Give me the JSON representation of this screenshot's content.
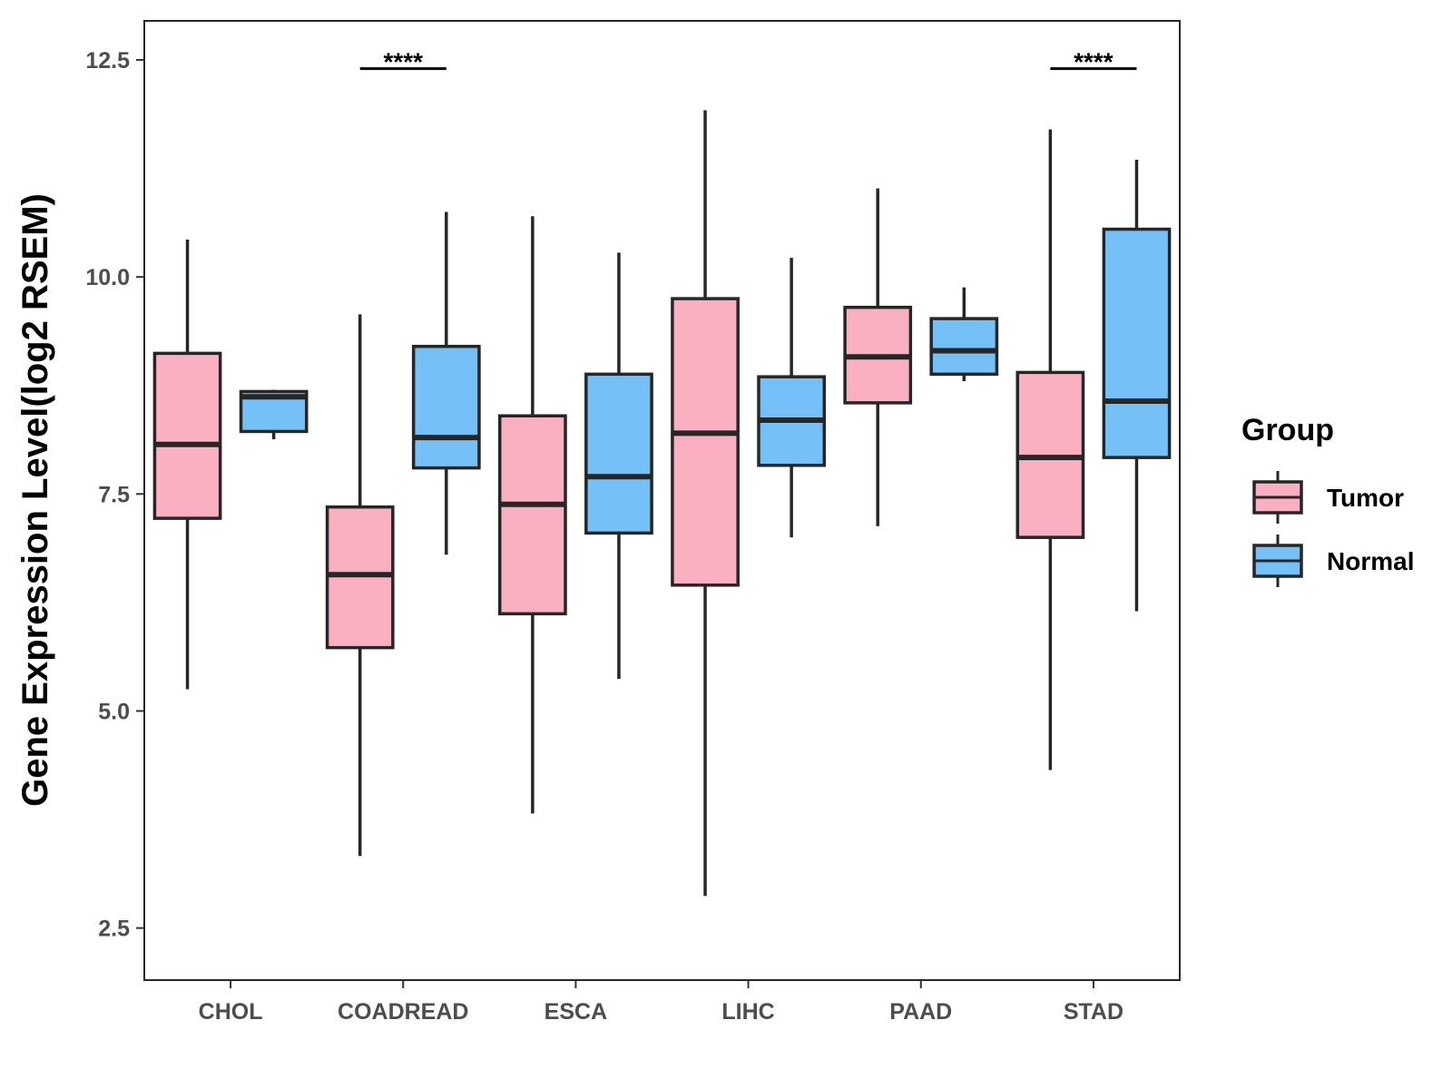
{
  "chart_data": {
    "type": "boxplot",
    "title": "",
    "xlabel": "",
    "ylabel": "Gene Expression Level(log2 RSEM)",
    "ylim": [
      1.9,
      12.95
    ],
    "yticks": [
      "2.5",
      "5.0",
      "7.5",
      "10.0",
      "12.5"
    ],
    "categories": [
      "CHOL",
      "COADREAD",
      "ESCA",
      "LIHC",
      "PAAD",
      "STAD"
    ],
    "legend": {
      "title": "Group",
      "entries": [
        "Tumor",
        "Normal"
      ],
      "position": "right"
    },
    "colors": {
      "Tumor": "#FBB0C2",
      "Normal": "#75C0F7",
      "outline": "#262626"
    },
    "series": [
      {
        "name": "Tumor",
        "boxes": [
          {
            "category": "CHOL",
            "min": 5.25,
            "q1": 7.22,
            "median": 8.07,
            "q3": 9.12,
            "max": 10.43
          },
          {
            "category": "COADREAD",
            "min": 3.33,
            "q1": 5.73,
            "median": 6.57,
            "q3": 7.35,
            "max": 9.57
          },
          {
            "category": "ESCA",
            "min": 3.82,
            "q1": 6.12,
            "median": 7.38,
            "q3": 8.4,
            "max": 10.7
          },
          {
            "category": "LIHC",
            "min": 2.87,
            "q1": 6.45,
            "median": 8.2,
            "q3": 9.75,
            "max": 11.92
          },
          {
            "category": "PAAD",
            "min": 7.13,
            "q1": 8.55,
            "median": 9.08,
            "q3": 9.65,
            "max": 11.02
          },
          {
            "category": "STAD",
            "min": 4.32,
            "q1": 7.0,
            "median": 7.92,
            "q3": 8.9,
            "max": 11.7
          }
        ]
      },
      {
        "name": "Normal",
        "boxes": [
          {
            "category": "CHOL",
            "min": 8.13,
            "q1": 8.22,
            "median": 8.62,
            "q3": 8.68,
            "max": 8.7
          },
          {
            "category": "COADREAD",
            "min": 6.8,
            "q1": 7.8,
            "median": 8.15,
            "q3": 9.2,
            "max": 10.75
          },
          {
            "category": "ESCA",
            "min": 5.37,
            "q1": 7.05,
            "median": 7.7,
            "q3": 8.88,
            "max": 10.28
          },
          {
            "category": "LIHC",
            "min": 7.0,
            "q1": 7.83,
            "median": 8.35,
            "q3": 8.85,
            "max": 10.22
          },
          {
            "category": "PAAD",
            "min": 8.8,
            "q1": 8.88,
            "median": 9.15,
            "q3": 9.52,
            "max": 9.88
          },
          {
            "category": "STAD",
            "min": 6.15,
            "q1": 7.92,
            "median": 8.57,
            "q3": 10.55,
            "max": 11.35
          }
        ]
      }
    ],
    "annotations": [
      {
        "category": "COADREAD",
        "text": "****",
        "y": 12.4
      },
      {
        "category": "STAD",
        "text": "****",
        "y": 12.4
      }
    ]
  }
}
